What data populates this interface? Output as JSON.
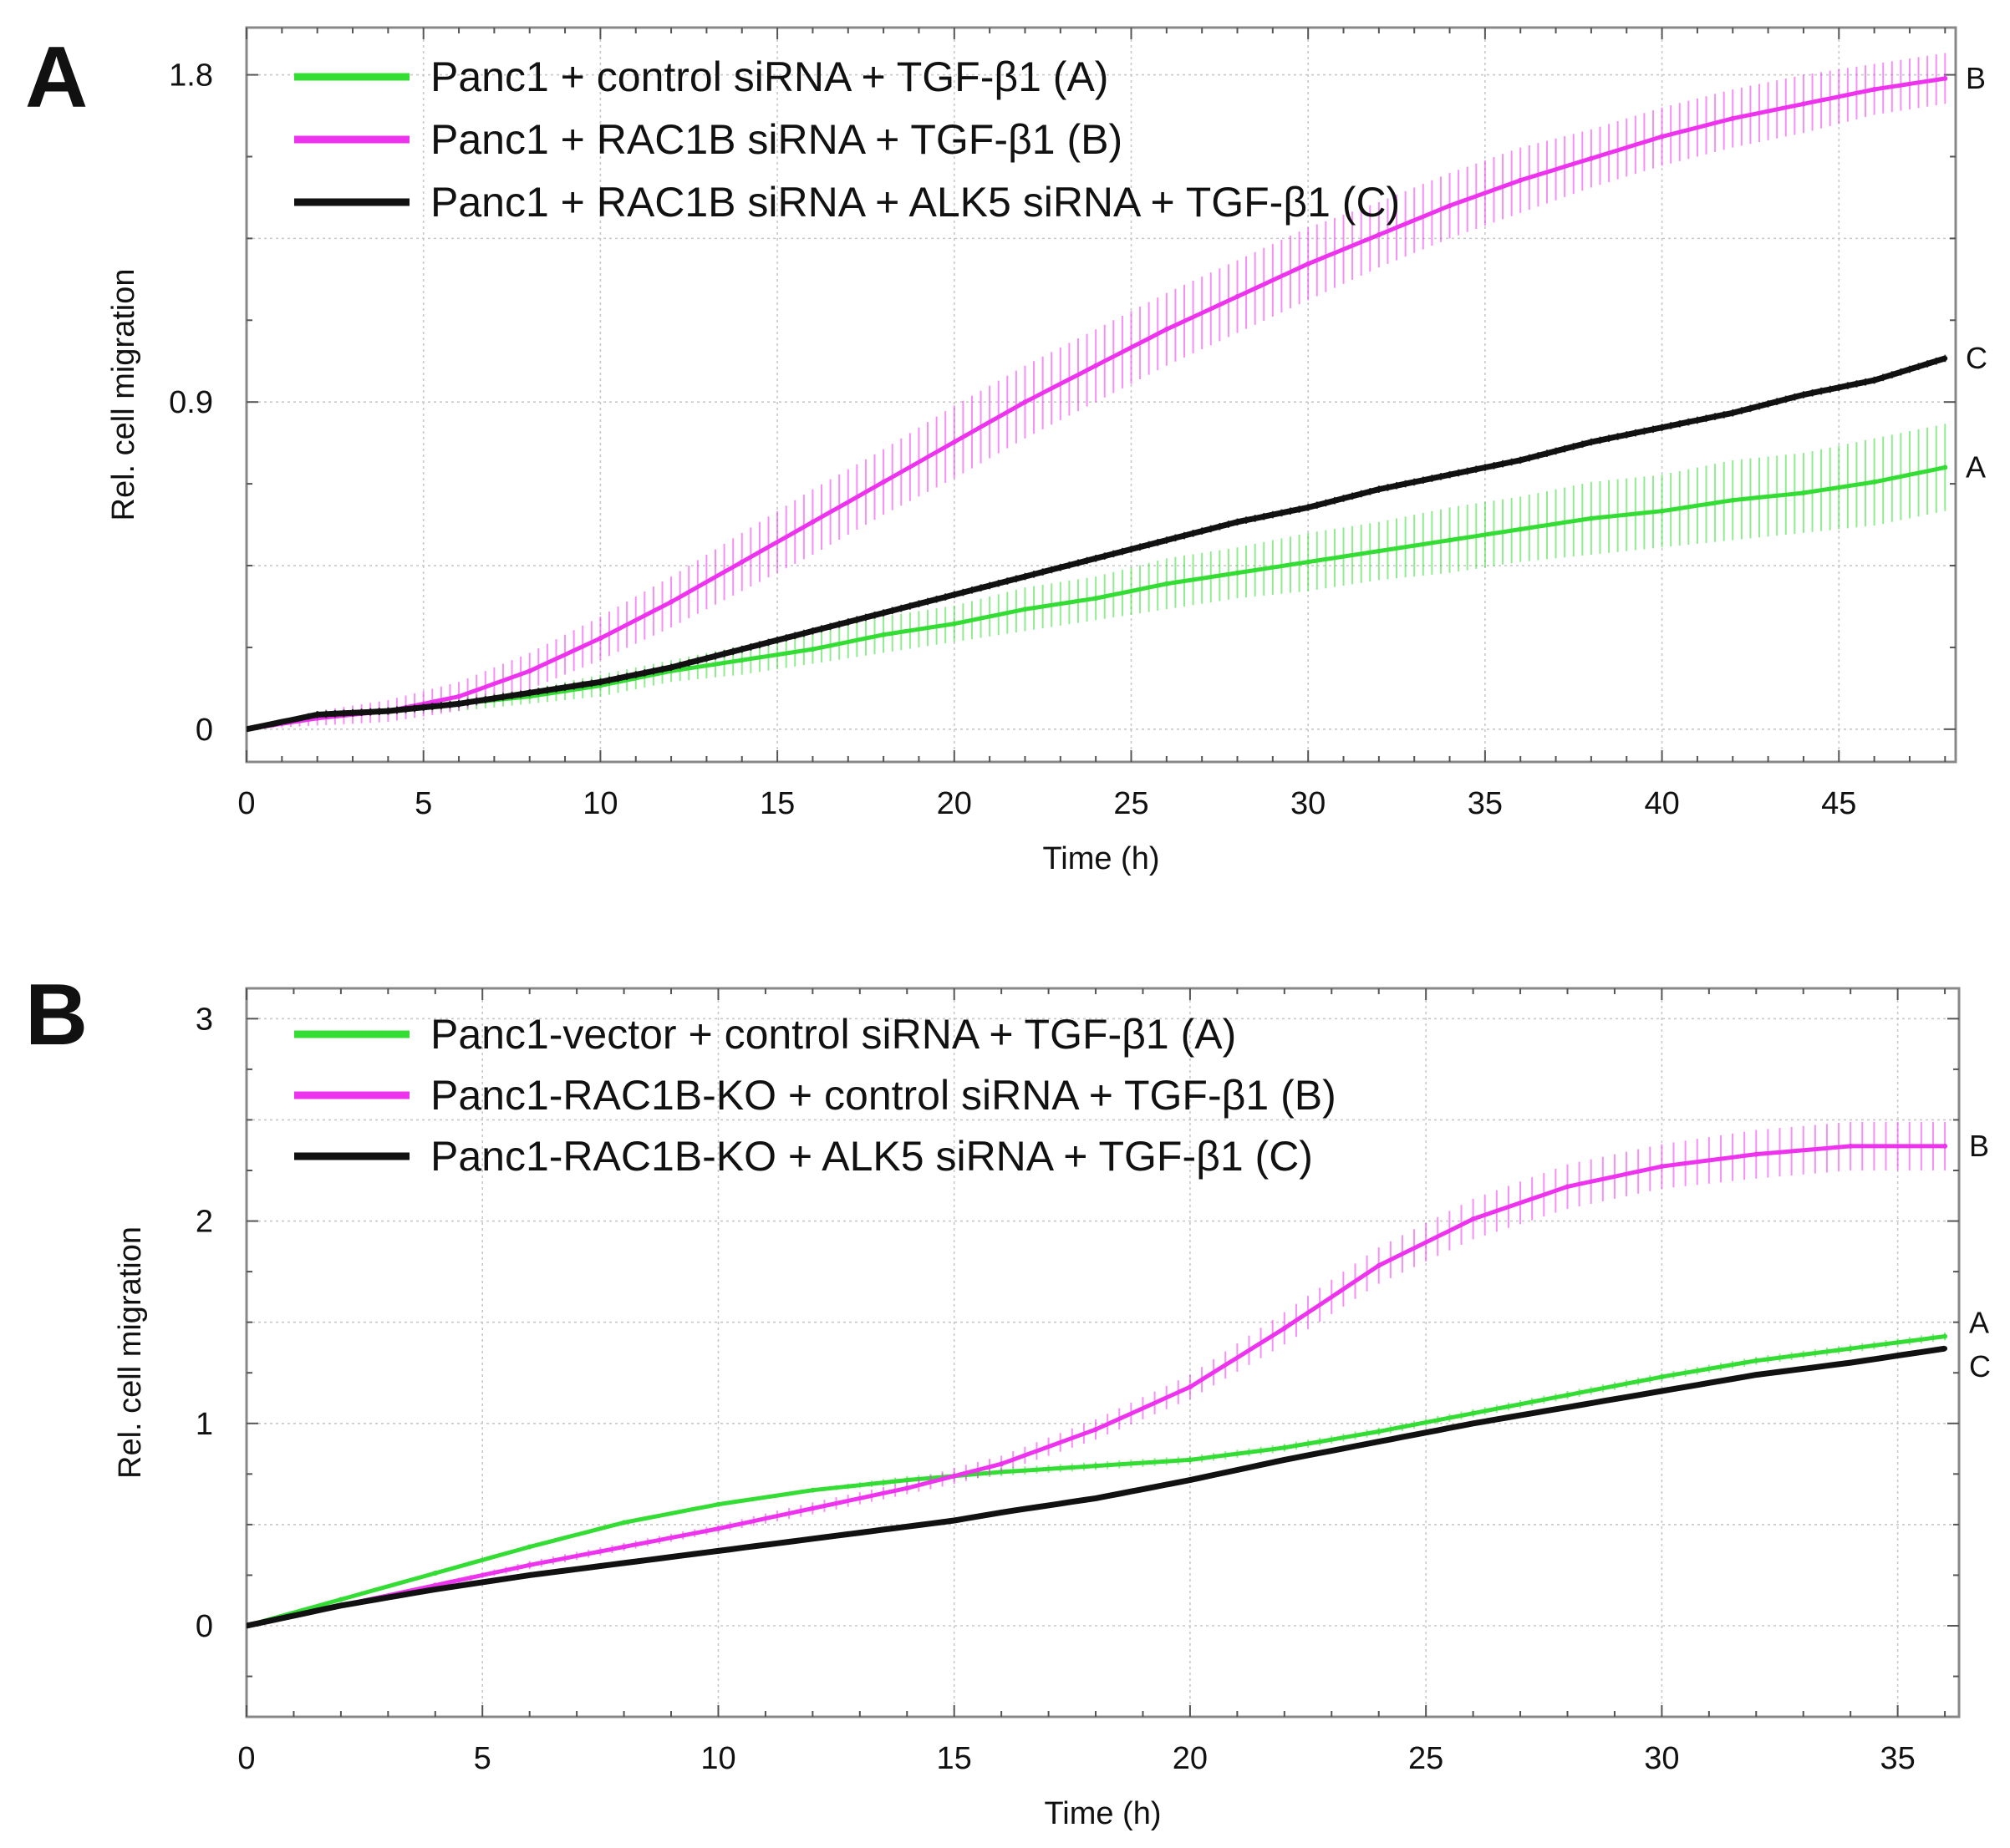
{
  "chart_data": [
    {
      "type": "line",
      "panel_label": "A",
      "xlabel": "Time (h)",
      "ylabel": "Rel. cell migration",
      "xlim": [
        0,
        48.3
      ],
      "ylim": [
        -0.09,
        1.93
      ],
      "xticks": [
        0,
        5,
        10,
        15,
        20,
        25,
        30,
        35,
        40,
        45
      ],
      "yticks": [
        0,
        0.9,
        1.8
      ],
      "ytick_labels": [
        "0",
        "0.9",
        "1.8"
      ],
      "minor_gridlines_y": [
        0.45,
        1.35
      ],
      "grid": true,
      "legend_position": "top-left",
      "x": [
        0,
        2,
        4,
        6,
        8,
        10,
        12,
        14,
        16,
        18,
        20,
        22,
        24,
        26,
        28,
        30,
        32,
        34,
        36,
        38,
        40,
        42,
        44,
        46,
        48
      ],
      "series": [
        {
          "name": "Panc1 + control siRNA + TGF-β1 (A)",
          "end_label": "A",
          "color": "#33dd33",
          "values": [
            0,
            0.04,
            0.05,
            0.07,
            0.09,
            0.12,
            0.16,
            0.19,
            0.22,
            0.26,
            0.29,
            0.33,
            0.36,
            0.4,
            0.43,
            0.46,
            0.49,
            0.52,
            0.55,
            0.58,
            0.6,
            0.63,
            0.65,
            0.68,
            0.72
          ],
          "errors": [
            0,
            0.01,
            0.01,
            0.02,
            0.02,
            0.03,
            0.03,
            0.04,
            0.04,
            0.05,
            0.05,
            0.06,
            0.06,
            0.07,
            0.07,
            0.08,
            0.08,
            0.09,
            0.09,
            0.1,
            0.1,
            0.11,
            0.11,
            0.12,
            0.12
          ]
        },
        {
          "name": "Panc1 + RAC1B siRNA + TGF-β1 (B)",
          "end_label": "B",
          "color": "#ee33ee",
          "values": [
            0,
            0.03,
            0.05,
            0.09,
            0.16,
            0.25,
            0.35,
            0.46,
            0.57,
            0.68,
            0.79,
            0.9,
            1.0,
            1.1,
            1.19,
            1.28,
            1.36,
            1.44,
            1.51,
            1.57,
            1.63,
            1.68,
            1.72,
            1.76,
            1.79
          ],
          "errors": [
            0,
            0.02,
            0.03,
            0.04,
            0.05,
            0.06,
            0.07,
            0.08,
            0.09,
            0.09,
            0.1,
            0.1,
            0.1,
            0.1,
            0.1,
            0.1,
            0.09,
            0.09,
            0.09,
            0.08,
            0.08,
            0.08,
            0.08,
            0.07,
            0.07
          ]
        },
        {
          "name": "Panc1 + RAC1B siRNA + ALK5 siRNA + TGF-β1 (C)",
          "end_label": "C",
          "color": "#111111",
          "values": [
            0,
            0.04,
            0.05,
            0.07,
            0.1,
            0.13,
            0.17,
            0.22,
            0.27,
            0.32,
            0.37,
            0.42,
            0.47,
            0.52,
            0.57,
            0.61,
            0.66,
            0.7,
            0.74,
            0.79,
            0.83,
            0.87,
            0.92,
            0.96,
            1.02
          ],
          "errors": [
            0,
            0.01,
            0.01,
            0.01,
            0.01,
            0.01,
            0.01,
            0.01,
            0.01,
            0.01,
            0.01,
            0.01,
            0.01,
            0.01,
            0.01,
            0.01,
            0.01,
            0.01,
            0.01,
            0.01,
            0.01,
            0.01,
            0.01,
            0.01,
            0.01
          ]
        }
      ]
    },
    {
      "type": "line",
      "panel_label": "B",
      "xlabel": "Time (h)",
      "ylabel": "Rel. cell migration",
      "xlim": [
        0,
        36.3
      ],
      "ylim": [
        -0.45,
        3.15
      ],
      "xticks": [
        0,
        5,
        10,
        15,
        20,
        25,
        30,
        35
      ],
      "yticks": [
        0,
        1,
        2,
        3
      ],
      "ytick_labels": [
        "0",
        "1",
        "2",
        "3"
      ],
      "minor_gridlines_y": [
        0.5,
        1.5,
        2.5
      ],
      "grid": true,
      "legend_position": "top-left",
      "x": [
        0,
        2,
        4,
        6,
        8,
        10,
        12,
        14,
        15,
        16,
        18,
        20,
        22,
        24,
        26,
        28,
        30,
        32,
        34,
        36
      ],
      "series": [
        {
          "name": "Panc1-vector + control siRNA + TGF-β1 (A)",
          "end_label": "A",
          "color": "#33dd33",
          "values": [
            0,
            0.13,
            0.26,
            0.39,
            0.51,
            0.6,
            0.67,
            0.72,
            0.74,
            0.76,
            0.79,
            0.82,
            0.88,
            0.96,
            1.05,
            1.14,
            1.23,
            1.31,
            1.37,
            1.43
          ],
          "errors": [
            0,
            0.01,
            0.01,
            0.01,
            0.01,
            0.01,
            0.01,
            0.02,
            0.02,
            0.02,
            0.02,
            0.02,
            0.02,
            0.02,
            0.02,
            0.02,
            0.02,
            0.02,
            0.02,
            0.02
          ]
        },
        {
          "name": "Panc1-RAC1B-KO + control siRNA + TGF-β1 (B)",
          "end_label": "B",
          "color": "#ee33ee",
          "values": [
            0,
            0.1,
            0.2,
            0.3,
            0.39,
            0.48,
            0.58,
            0.68,
            0.74,
            0.8,
            0.97,
            1.18,
            1.47,
            1.78,
            2.01,
            2.17,
            2.27,
            2.33,
            2.37,
            2.37
          ],
          "errors": [
            0,
            0.01,
            0.01,
            0.02,
            0.02,
            0.02,
            0.03,
            0.03,
            0.04,
            0.04,
            0.05,
            0.06,
            0.08,
            0.09,
            0.1,
            0.11,
            0.11,
            0.12,
            0.12,
            0.12
          ]
        },
        {
          "name": "Panc1-RAC1B-KO + ALK5 siRNA + TGF-β1 (C)",
          "end_label": "C",
          "color": "#111111",
          "values": [
            0,
            0.1,
            0.18,
            0.25,
            0.31,
            0.37,
            0.43,
            0.49,
            0.52,
            0.56,
            0.63,
            0.72,
            0.82,
            0.91,
            1.0,
            1.08,
            1.16,
            1.24,
            1.3,
            1.37
          ],
          "errors": [
            0,
            0.01,
            0.01,
            0.01,
            0.01,
            0.01,
            0.01,
            0.01,
            0.01,
            0.01,
            0.01,
            0.01,
            0.01,
            0.01,
            0.01,
            0.01,
            0.01,
            0.01,
            0.01,
            0.01
          ]
        }
      ]
    }
  ]
}
